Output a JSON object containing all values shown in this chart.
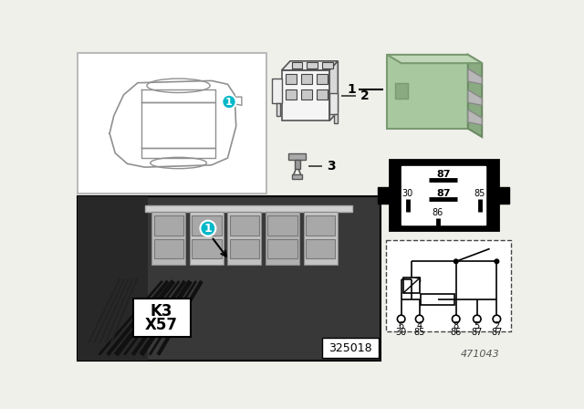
{
  "bg_color": "#f0f0eb",
  "white": "#ffffff",
  "black": "#000000",
  "relay_green": "#a8c8a0",
  "relay_green_side": "#8aaa82",
  "teal_circle": "#00b8c8",
  "car_outline": "#909090",
  "photo_bg": "#404040",
  "part_number": "471043",
  "photo_number": "325018"
}
